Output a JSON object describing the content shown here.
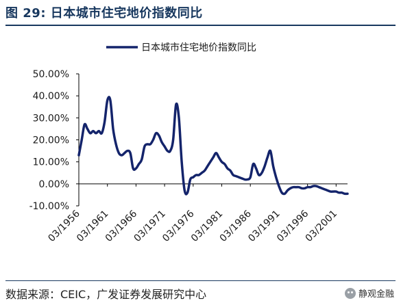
{
  "header": {
    "title": "图 29:  日本城市住宅地价指数同比"
  },
  "footer": {
    "source": "数据来源：CEIC，广发证券发展研究中心",
    "brand": "静观金融",
    "brand_icon": "wechat-icon"
  },
  "colors": {
    "line": "#14246b",
    "title": "#17375e"
  },
  "chart_data": {
    "type": "line",
    "title": "",
    "xlabel": "",
    "ylabel": "",
    "ylim": [
      -10,
      50
    ],
    "yticks": [
      "50.00%",
      "40.00%",
      "30.00%",
      "20.00%",
      "10.00%",
      "0.00%",
      "-10.00%"
    ],
    "xticks": [
      "03/1956",
      "03/1961",
      "03/1966",
      "03/1971",
      "03/1976",
      "03/1981",
      "03/1986",
      "03/1991",
      "03/1996",
      "03/2001"
    ],
    "grid": false,
    "legend": "top-center",
    "series": [
      {
        "name": "日本城市住宅地价指数同比",
        "x": [
          1956.0,
          1956.5,
          1957.0,
          1957.5,
          1958.0,
          1958.5,
          1959.0,
          1959.5,
          1960.0,
          1960.5,
          1961.0,
          1961.5,
          1962.0,
          1962.5,
          1963.0,
          1963.5,
          1964.0,
          1964.5,
          1965.0,
          1965.5,
          1966.0,
          1966.5,
          1967.0,
          1967.5,
          1968.0,
          1968.5,
          1969.0,
          1969.5,
          1970.0,
          1970.5,
          1971.0,
          1971.5,
          1972.0,
          1972.5,
          1973.0,
          1973.5,
          1974.0,
          1974.5,
          1975.0,
          1975.5,
          1976.0,
          1976.5,
          1977.0,
          1977.5,
          1978.0,
          1978.5,
          1979.0,
          1979.5,
          1980.0,
          1980.5,
          1981.0,
          1981.5,
          1982.0,
          1982.5,
          1983.0,
          1983.5,
          1984.0,
          1984.5,
          1985.0,
          1985.5,
          1986.0,
          1986.5,
          1987.0,
          1987.5,
          1988.0,
          1988.5,
          1989.0,
          1989.5,
          1990.0,
          1990.5,
          1991.0,
          1991.5,
          1992.0,
          1992.5,
          1993.0,
          1993.5,
          1994.0,
          1994.5,
          1995.0,
          1995.5,
          1996.0,
          1996.5,
          1997.0,
          1997.5,
          1998.0,
          1998.5,
          1999.0,
          1999.5,
          2000.0,
          2000.5,
          2001.0,
          2001.5,
          2002.0,
          2002.5,
          2003.0
        ],
        "values": [
          13,
          20,
          27,
          25,
          23,
          24,
          23,
          24,
          23,
          28,
          38,
          38,
          25,
          18,
          14,
          13,
          14,
          15,
          14,
          7,
          7,
          9,
          11,
          17,
          18,
          18,
          20,
          23,
          22,
          19,
          17,
          15,
          15,
          20,
          36,
          30,
          10,
          -3,
          -4,
          2,
          3,
          4,
          4,
          5,
          6,
          8,
          10,
          12,
          14,
          12,
          10,
          9,
          7,
          6,
          4,
          3.5,
          3,
          2.5,
          2,
          2,
          3,
          9,
          7,
          4,
          5,
          8,
          12,
          15,
          8,
          3,
          -1,
          -4,
          -4.5,
          -3,
          -2,
          -1.5,
          -1.5,
          -1.5,
          -2,
          -2,
          -1.5,
          -1.5,
          -1,
          -1,
          -1.5,
          -2,
          -2.5,
          -3,
          -3.5,
          -3.5,
          -3.5,
          -4,
          -4,
          -4.5,
          -4.5
        ]
      }
    ]
  }
}
